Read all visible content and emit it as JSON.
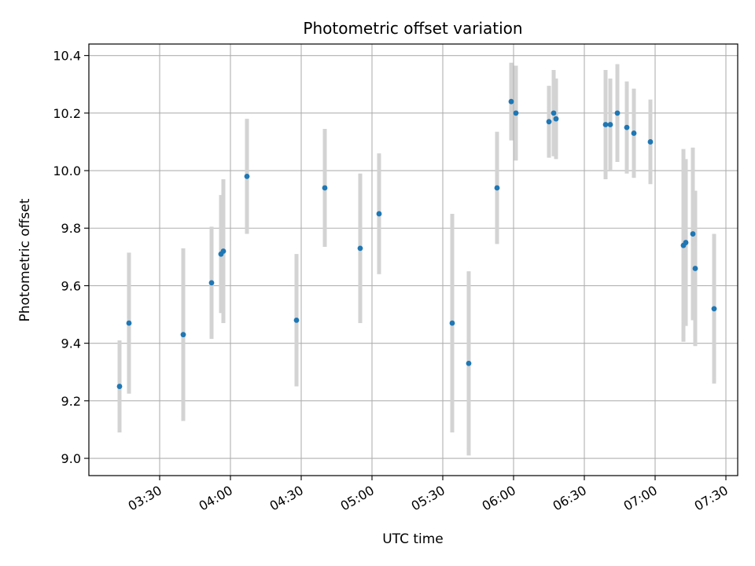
{
  "chart_data": {
    "type": "scatter",
    "title": "Photometric offset variation",
    "xlabel": "UTC time",
    "ylabel": "Photometric offset",
    "x_unit": "UTC time (HH:MM)",
    "xlim": [
      "03:00",
      "07:35"
    ],
    "ylim": [
      8.94,
      10.44
    ],
    "x_ticks": [
      "03:30",
      "04:00",
      "04:30",
      "05:00",
      "05:30",
      "06:00",
      "06:30",
      "07:00",
      "07:30"
    ],
    "y_ticks": [
      "9.0",
      "9.2",
      "9.4",
      "9.6",
      "9.8",
      "10.0",
      "10.2",
      "10.4"
    ],
    "grid": true,
    "x_tick_label_rotation": "30 degrees",
    "colors": {
      "point": "#1f77b4",
      "errorbar": "#d3d3d3",
      "grid": "#b0b0b0"
    },
    "series": [
      {
        "points": [
          {
            "x": "03:13",
            "y": 9.25,
            "yerr": 0.16
          },
          {
            "x": "03:17",
            "y": 9.47,
            "yerr": 0.245
          },
          {
            "x": "03:40",
            "y": 9.43,
            "yerr": 0.3
          },
          {
            "x": "03:52",
            "y": 9.61,
            "yerr": 0.195
          },
          {
            "x": "03:56",
            "y": 9.71,
            "yerr": 0.205
          },
          {
            "x": "03:57",
            "y": 9.72,
            "yerr": 0.25
          },
          {
            "x": "04:07",
            "y": 9.98,
            "yerr": 0.2
          },
          {
            "x": "04:28",
            "y": 9.48,
            "yerr": 0.23
          },
          {
            "x": "04:40",
            "y": 9.94,
            "yerr": 0.205
          },
          {
            "x": "04:55",
            "y": 9.73,
            "yerr": 0.26
          },
          {
            "x": "05:03",
            "y": 9.85,
            "yerr": 0.21
          },
          {
            "x": "05:34",
            "y": 9.47,
            "yerr": 0.38
          },
          {
            "x": "05:41",
            "y": 9.33,
            "yerr": 0.32
          },
          {
            "x": "05:53",
            "y": 9.94,
            "yerr": 0.195
          },
          {
            "x": "05:59",
            "y": 10.24,
            "yerr": 0.135
          },
          {
            "x": "06:01",
            "y": 10.2,
            "yerr": 0.165
          },
          {
            "x": "06:15",
            "y": 10.17,
            "yerr": 0.125
          },
          {
            "x": "06:17",
            "y": 10.2,
            "yerr": 0.15
          },
          {
            "x": "06:18",
            "y": 10.18,
            "yerr": 0.14
          },
          {
            "x": "06:39",
            "y": 10.16,
            "yerr": 0.19
          },
          {
            "x": "06:41",
            "y": 10.16,
            "yerr": 0.16
          },
          {
            "x": "06:44",
            "y": 10.2,
            "yerr": 0.17
          },
          {
            "x": "06:48",
            "y": 10.15,
            "yerr": 0.16
          },
          {
            "x": "06:51",
            "y": 10.13,
            "yerr": 0.155
          },
          {
            "x": "06:58",
            "y": 10.1,
            "yerr": 0.147
          },
          {
            "x": "07:12",
            "y": 9.74,
            "yerr": 0.335
          },
          {
            "x": "07:13",
            "y": 9.75,
            "yerr": 0.29
          },
          {
            "x": "07:16",
            "y": 9.78,
            "yerr": 0.3
          },
          {
            "x": "07:17",
            "y": 9.66,
            "yerr": 0.27
          },
          {
            "x": "07:25",
            "y": 9.52,
            "yerr": 0.26
          }
        ]
      }
    ]
  }
}
